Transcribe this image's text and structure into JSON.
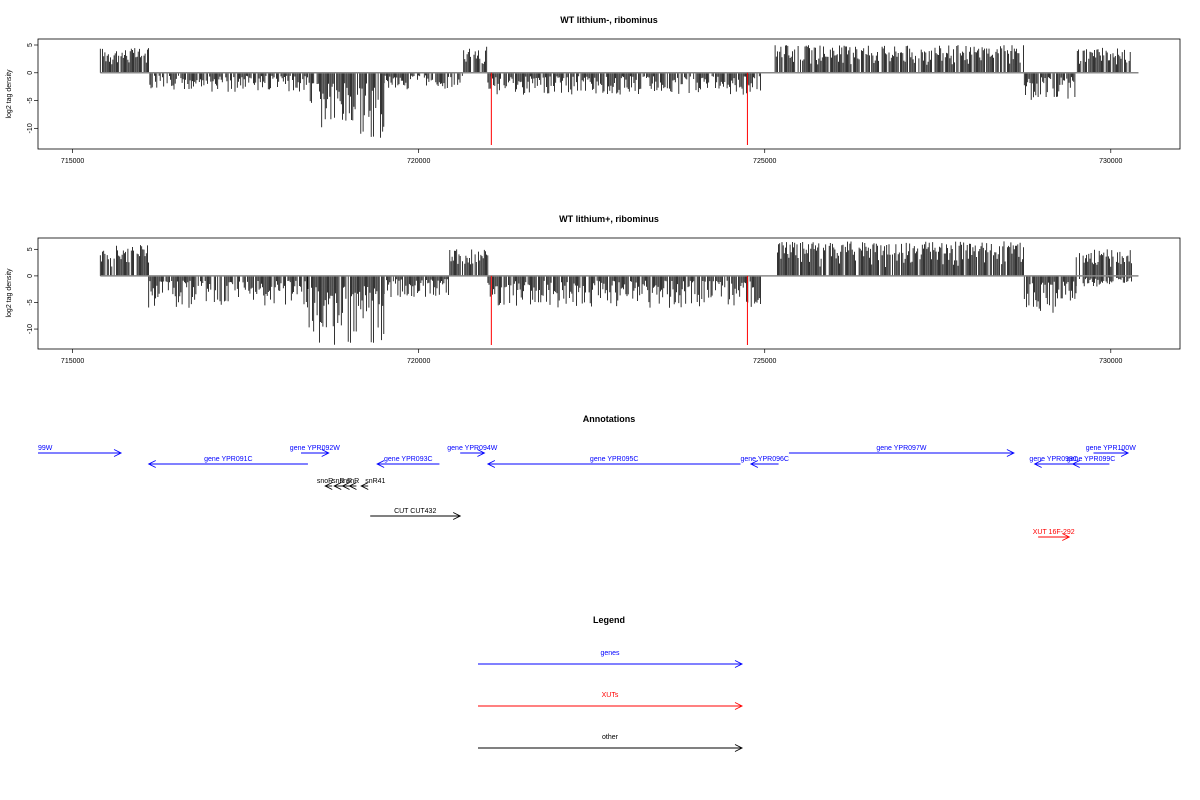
{
  "colors": {
    "bars": "#000000",
    "baseline": "#888888",
    "marker": "#ff0000",
    "gene": "#0000ff",
    "xut": "#ff0000",
    "other": "#000000"
  },
  "chart_data": [
    {
      "type": "bar",
      "title": "WT lithium-, ribominus",
      "ylabel": "log2 tag density",
      "xlim": [
        714500,
        731000
      ],
      "ylim": [
        -13,
        5
      ],
      "x_ticks": [
        "715000",
        "720000",
        "725000",
        "730000"
      ],
      "y_ticks": [
        "5",
        "0",
        "-5",
        "-10"
      ],
      "markers_x": [
        721050,
        724750
      ],
      "profile": [
        {
          "x": [
            715400,
            716100
          ],
          "y": [
            4.5,
            0
          ]
        },
        {
          "x": [
            716100,
            718400
          ],
          "y": [
            0,
            -3.5
          ]
        },
        {
          "x": [
            718400,
            719500
          ],
          "y": [
            0,
            -12
          ]
        },
        {
          "x": [
            719500,
            720650
          ],
          "y": [
            0,
            -3
          ]
        },
        {
          "x": [
            720650,
            721000
          ],
          "y": [
            5,
            0
          ]
        },
        {
          "x": [
            721000,
            724950
          ],
          "y": [
            0,
            -4
          ]
        },
        {
          "x": [
            725150,
            728750
          ],
          "y": [
            5,
            0
          ]
        },
        {
          "x": [
            728750,
            729500
          ],
          "y": [
            0,
            -5
          ]
        },
        {
          "x": [
            729500,
            730300
          ],
          "y": [
            4.5,
            0
          ]
        }
      ]
    },
    {
      "type": "bar",
      "title": "WT lithium+, ribominus",
      "ylabel": "log2 tag density",
      "xlim": [
        714500,
        731000
      ],
      "ylim": [
        -13,
        6
      ],
      "x_ticks": [
        "715000",
        "720000",
        "725000",
        "730000"
      ],
      "y_ticks": [
        "5",
        "0",
        "-5",
        "-10"
      ],
      "markers_x": [
        721050,
        724750
      ],
      "profile": [
        {
          "x": [
            715400,
            716100
          ],
          "y": [
            6,
            0
          ]
        },
        {
          "x": [
            716100,
            718400
          ],
          "y": [
            0,
            -6
          ]
        },
        {
          "x": [
            718400,
            719500
          ],
          "y": [
            0,
            -13
          ]
        },
        {
          "x": [
            719500,
            720450
          ],
          "y": [
            0,
            -4
          ]
        },
        {
          "x": [
            720450,
            721000
          ],
          "y": [
            5,
            0
          ]
        },
        {
          "x": [
            721000,
            724950
          ],
          "y": [
            0,
            -6
          ]
        },
        {
          "x": [
            725150,
            728750
          ],
          "y": [
            6.5,
            0
          ]
        },
        {
          "x": [
            728750,
            729500
          ],
          "y": [
            0,
            -7
          ]
        },
        {
          "x": [
            729500,
            730300
          ],
          "y": [
            5,
            -2
          ]
        }
      ]
    }
  ],
  "annotations": {
    "title": "Annotations",
    "tracks": [
      {
        "label": "99W",
        "type": "gene",
        "x1": 714500,
        "x2": 715700,
        "dir": "right",
        "row": 0
      },
      {
        "label": "gene YPR091C",
        "type": "gene",
        "x1": 716100,
        "x2": 718400,
        "dir": "left",
        "row": 1
      },
      {
        "label": "gene YPR092W",
        "type": "gene",
        "x1": 718300,
        "x2": 718700,
        "dir": "right",
        "row": 0
      },
      {
        "label": "gene YPR093C",
        "type": "gene",
        "x1": 719400,
        "x2": 720300,
        "dir": "left",
        "row": 1
      },
      {
        "label": "gene YPR094W",
        "type": "gene",
        "x1": 720600,
        "x2": 720950,
        "dir": "right",
        "row": 0
      },
      {
        "label": "gene YPR095C",
        "type": "gene",
        "x1": 721000,
        "x2": 724650,
        "dir": "left",
        "row": 1
      },
      {
        "label": "gene YPR096C",
        "type": "gene",
        "x1": 724800,
        "x2": 725200,
        "dir": "left",
        "row": 1
      },
      {
        "label": "gene YPR097W",
        "type": "gene",
        "x1": 725350,
        "x2": 728600,
        "dir": "right",
        "row": 0
      },
      {
        "label": "gene YPR098C",
        "type": "gene",
        "x1": 728900,
        "x2": 729450,
        "dir": "left",
        "row": 1
      },
      {
        "label": "gene YPR099C",
        "type": "gene",
        "x1": 729450,
        "x2": 729980,
        "dir": "left",
        "row": 1
      },
      {
        "label": "gene YPR100W",
        "type": "gene",
        "x1": 729750,
        "x2": 730250,
        "dir": "right",
        "row": 0
      },
      {
        "label": "snoR",
        "type": "other",
        "x1": 718650,
        "x2": 718750,
        "dir": "left",
        "row": 2,
        "label_anchor": "end"
      },
      {
        "label": "snR",
        "type": "other",
        "x1": 718780,
        "x2": 718900,
        "dir": "left",
        "row": 2,
        "label_anchor": "middle"
      },
      {
        "label": "snR",
        "type": "other",
        "x1": 718900,
        "x2": 719000,
        "dir": "left",
        "row": 2,
        "label_anchor": "middle"
      },
      {
        "label": "snR",
        "type": "other",
        "x1": 719000,
        "x2": 719100,
        "dir": "left",
        "row": 2,
        "label_anchor": "middle"
      },
      {
        "label": "snR41",
        "type": "other",
        "x1": 719170,
        "x2": 719270,
        "dir": "left",
        "row": 2,
        "label_anchor": "start"
      },
      {
        "label": "CUT CUT432",
        "type": "other",
        "x1": 719300,
        "x2": 720600,
        "dir": "right",
        "row": 3
      },
      {
        "label": "XUT 16F-292",
        "type": "xut",
        "x1": 728950,
        "x2": 729400,
        "dir": "right",
        "row": 4
      }
    ]
  },
  "legend": {
    "title": "Legend",
    "items": [
      {
        "label": "genes",
        "type": "gene"
      },
      {
        "label": "XUTs",
        "type": "xut"
      },
      {
        "label": "other",
        "type": "other"
      }
    ]
  }
}
